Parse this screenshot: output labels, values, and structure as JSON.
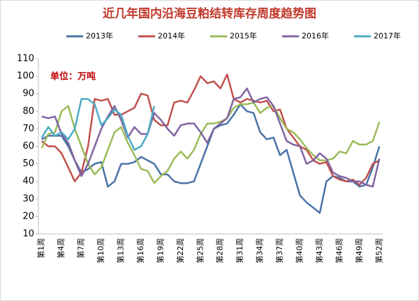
{
  "chart_data": {
    "type": "line",
    "title": "近几年国内沿海豆粕结转库存周度趋势图",
    "annotation": "单位：万吨",
    "categories": [
      "第1周",
      null,
      null,
      "第4周",
      null,
      null,
      "第7周",
      null,
      null,
      "第10周",
      null,
      null,
      "第13周",
      null,
      null,
      "第16周",
      null,
      null,
      "第19周",
      null,
      null,
      "第22周",
      null,
      null,
      "第25周",
      null,
      null,
      "第28周",
      null,
      null,
      "第31周",
      null,
      null,
      "第34周",
      null,
      null,
      "第37周",
      null,
      null,
      "第40周",
      null,
      null,
      "第43周",
      null,
      null,
      "第46周",
      null,
      null,
      "第49周",
      null,
      null,
      "第52周"
    ],
    "ylim": [
      10,
      110
    ],
    "yticks": [
      10,
      20,
      30,
      40,
      50,
      60,
      70,
      80,
      90,
      100,
      110
    ],
    "grid": false,
    "series": [
      {
        "name": "2013年",
        "color": "#4a72a8",
        "values": [
          64,
          66,
          66,
          66,
          60,
          52,
          45,
          47,
          50,
          51,
          37,
          40,
          50,
          50,
          51,
          54,
          52,
          50,
          44,
          44,
          40,
          39,
          39,
          40,
          50,
          60,
          70,
          72,
          73,
          78,
          84,
          80,
          79,
          68,
          64,
          65,
          55,
          58,
          45,
          32,
          28,
          25,
          22,
          40,
          43,
          42,
          40,
          40,
          37,
          38,
          48,
          60
        ]
      },
      {
        "name": "2014年",
        "color": "#c0504d",
        "values": [
          63,
          60,
          60,
          56,
          48,
          40,
          45,
          60,
          87,
          86,
          87,
          78,
          78,
          80,
          82,
          90,
          89,
          75,
          72,
          72,
          85,
          86,
          85,
          92,
          100,
          96,
          97,
          93,
          101,
          87,
          85,
          87,
          86,
          85,
          86,
          80,
          81,
          70,
          65,
          60,
          58,
          52,
          50,
          51,
          43,
          41,
          40,
          41,
          38,
          42,
          50,
          52
        ]
      },
      {
        "name": "2015年",
        "color": "#9bbb59",
        "values": [
          59,
          67,
          68,
          80,
          83,
          70,
          60,
          50,
          44,
          48,
          58,
          68,
          71,
          62,
          55,
          47,
          46,
          39,
          43,
          46,
          53,
          57,
          53,
          58,
          67,
          73,
          73,
          74,
          76,
          82,
          84,
          84,
          85,
          79,
          82,
          83,
          76,
          70,
          68,
          64,
          59,
          55,
          52,
          52,
          53,
          57,
          56,
          63,
          61,
          61,
          63,
          74
        ]
      },
      {
        "name": "2016年",
        "color": "#8064a2",
        "values": [
          77,
          76,
          77,
          67,
          62,
          52,
          43,
          50,
          60,
          70,
          77,
          83,
          75,
          65,
          71,
          67,
          67,
          79,
          75,
          70,
          66,
          72,
          73,
          73,
          68,
          62,
          70,
          73,
          76,
          87,
          88,
          93,
          85,
          87,
          88,
          83,
          73,
          63,
          61,
          60,
          50,
          52,
          56,
          53,
          45,
          43,
          42,
          40,
          40,
          38,
          37,
          53
        ]
      },
      {
        "name": "2017年",
        "color": "#4bacc6",
        "values": [
          65,
          71,
          66,
          68,
          64,
          70,
          87,
          87,
          84,
          72,
          76,
          81,
          78,
          66,
          58,
          60,
          67,
          83,
          null,
          null,
          null,
          null,
          null,
          null,
          null,
          null,
          null,
          null,
          null,
          null,
          null,
          null,
          null,
          null,
          null,
          null,
          null,
          null,
          null,
          null,
          null,
          null,
          null,
          null,
          null,
          null,
          null,
          null,
          null,
          null,
          null,
          null
        ]
      }
    ]
  }
}
